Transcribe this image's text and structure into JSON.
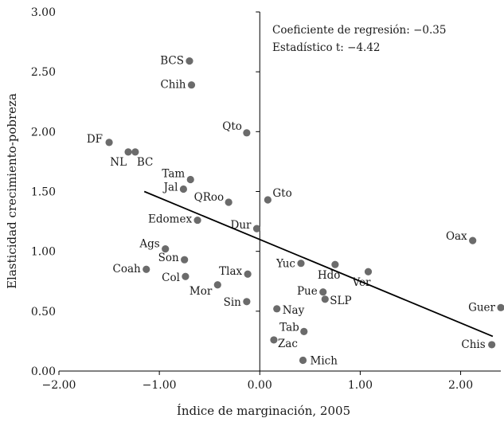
{
  "chart_data": {
    "type": "scatter",
    "xlabel": "Índice de marginación, 2005",
    "ylabel": "Elasticidad crecimiento-pobreza",
    "xlim": [
      -2.0,
      2.4
    ],
    "ylim": [
      0.0,
      3.0
    ],
    "x_ticks": [
      "−2.00",
      "−1.00",
      "0.00",
      "1.00",
      "2.00"
    ],
    "y_ticks": [
      "0.00",
      "0.50",
      "1.00",
      "1.50",
      "2.00",
      "2.50",
      "3.00"
    ],
    "grid": false,
    "annotations": [
      "Coeficiente de regresión: −0.35",
      "Estadístico t: −4.42"
    ],
    "regression_line": {
      "x": [
        -1.15,
        2.32
      ],
      "y": [
        1.5,
        0.29
      ]
    },
    "points": [
      {
        "label": "BCS",
        "x": -0.7,
        "y": 2.59
      },
      {
        "label": "Chih",
        "x": -0.68,
        "y": 2.39
      },
      {
        "label": "Qto",
        "x": -0.13,
        "y": 1.99
      },
      {
        "label": "DF",
        "x": -1.5,
        "y": 1.91
      },
      {
        "label": "NL",
        "x": -1.31,
        "y": 1.83
      },
      {
        "label": "BC",
        "x": -1.24,
        "y": 1.83
      },
      {
        "label": "Tam",
        "x": -0.69,
        "y": 1.6
      },
      {
        "label": "Jal",
        "x": -0.76,
        "y": 1.52
      },
      {
        "label": "QRoo",
        "x": -0.31,
        "y": 1.41
      },
      {
        "label": "Gto",
        "x": 0.08,
        "y": 1.43
      },
      {
        "label": "Edomex",
        "x": -0.62,
        "y": 1.26
      },
      {
        "label": "Dur",
        "x": -0.03,
        "y": 1.19
      },
      {
        "label": "Oax",
        "x": 2.12,
        "y": 1.09
      },
      {
        "label": "Ags",
        "x": -0.94,
        "y": 1.02
      },
      {
        "label": "Son",
        "x": -0.75,
        "y": 0.93
      },
      {
        "label": "Yuc",
        "x": 0.41,
        "y": 0.9
      },
      {
        "label": "Hdo",
        "x": 0.75,
        "y": 0.89
      },
      {
        "label": "Coah",
        "x": -1.13,
        "y": 0.85
      },
      {
        "label": "Ver",
        "x": 1.08,
        "y": 0.83
      },
      {
        "label": "Tlax",
        "x": -0.12,
        "y": 0.81
      },
      {
        "label": "Col",
        "x": -0.74,
        "y": 0.79
      },
      {
        "label": "Mor",
        "x": -0.42,
        "y": 0.72
      },
      {
        "label": "Pue",
        "x": 0.63,
        "y": 0.66
      },
      {
        "label": "SLP",
        "x": 0.65,
        "y": 0.6
      },
      {
        "label": "Sin",
        "x": -0.13,
        "y": 0.58
      },
      {
        "label": "Guer",
        "x": 2.4,
        "y": 0.53
      },
      {
        "label": "Nay",
        "x": 0.17,
        "y": 0.52
      },
      {
        "label": "Tab",
        "x": 0.44,
        "y": 0.33
      },
      {
        "label": "Zac",
        "x": 0.14,
        "y": 0.26
      },
      {
        "label": "Chis",
        "x": 2.31,
        "y": 0.22
      },
      {
        "label": "Mich",
        "x": 0.43,
        "y": 0.09
      }
    ]
  }
}
